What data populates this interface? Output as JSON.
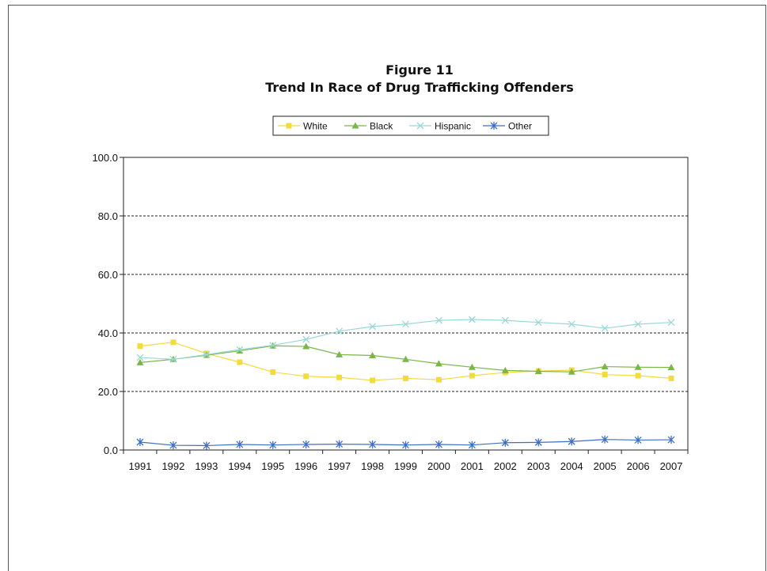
{
  "chart_data": {
    "type": "line",
    "title": "Figure 11",
    "subtitle": "Trend In Race of Drug Trafficking Offenders",
    "xlabel": "",
    "ylabel": "",
    "x": [
      "1991",
      "1992",
      "1993",
      "1994",
      "1995",
      "1996",
      "1997",
      "1998",
      "1999",
      "2000",
      "2001",
      "2002",
      "2003",
      "2004",
      "2005",
      "2006",
      "2007"
    ],
    "ylim": [
      0,
      100
    ],
    "yticks": [
      "0.0",
      "20.0",
      "40.0",
      "60.0",
      "80.0",
      "100.0"
    ],
    "grid": "horizontal-dashed",
    "legend_position": "top-center",
    "series": [
      {
        "name": "White",
        "color": "#f2dc3c",
        "marker": "square",
        "values": [
          35.5,
          36.8,
          33.0,
          30.0,
          26.6,
          25.2,
          24.8,
          23.8,
          24.5,
          24.0,
          25.4,
          26.5,
          27.0,
          27.3,
          25.8,
          25.4,
          24.5
        ]
      },
      {
        "name": "Black",
        "color": "#7ab648",
        "marker": "triangle",
        "values": [
          29.9,
          31.0,
          32.4,
          33.9,
          35.6,
          35.4,
          32.6,
          32.3,
          31.0,
          29.5,
          28.3,
          27.2,
          26.9,
          26.7,
          28.5,
          28.3,
          28.2
        ]
      },
      {
        "name": "Hispanic",
        "color": "#9ad8d8",
        "marker": "x",
        "values": [
          31.6,
          31.0,
          32.6,
          34.3,
          35.8,
          37.8,
          40.6,
          42.2,
          43.0,
          44.3,
          44.6,
          44.3,
          43.6,
          43.0,
          41.6,
          43.0,
          43.6
        ]
      },
      {
        "name": "Other",
        "color": "#3f6fbf",
        "marker": "asterisk",
        "values": [
          2.7,
          1.6,
          1.5,
          1.9,
          1.7,
          1.9,
          2.0,
          1.9,
          1.7,
          1.9,
          1.7,
          2.5,
          2.6,
          2.9,
          3.6,
          3.4,
          3.5
        ]
      }
    ]
  }
}
